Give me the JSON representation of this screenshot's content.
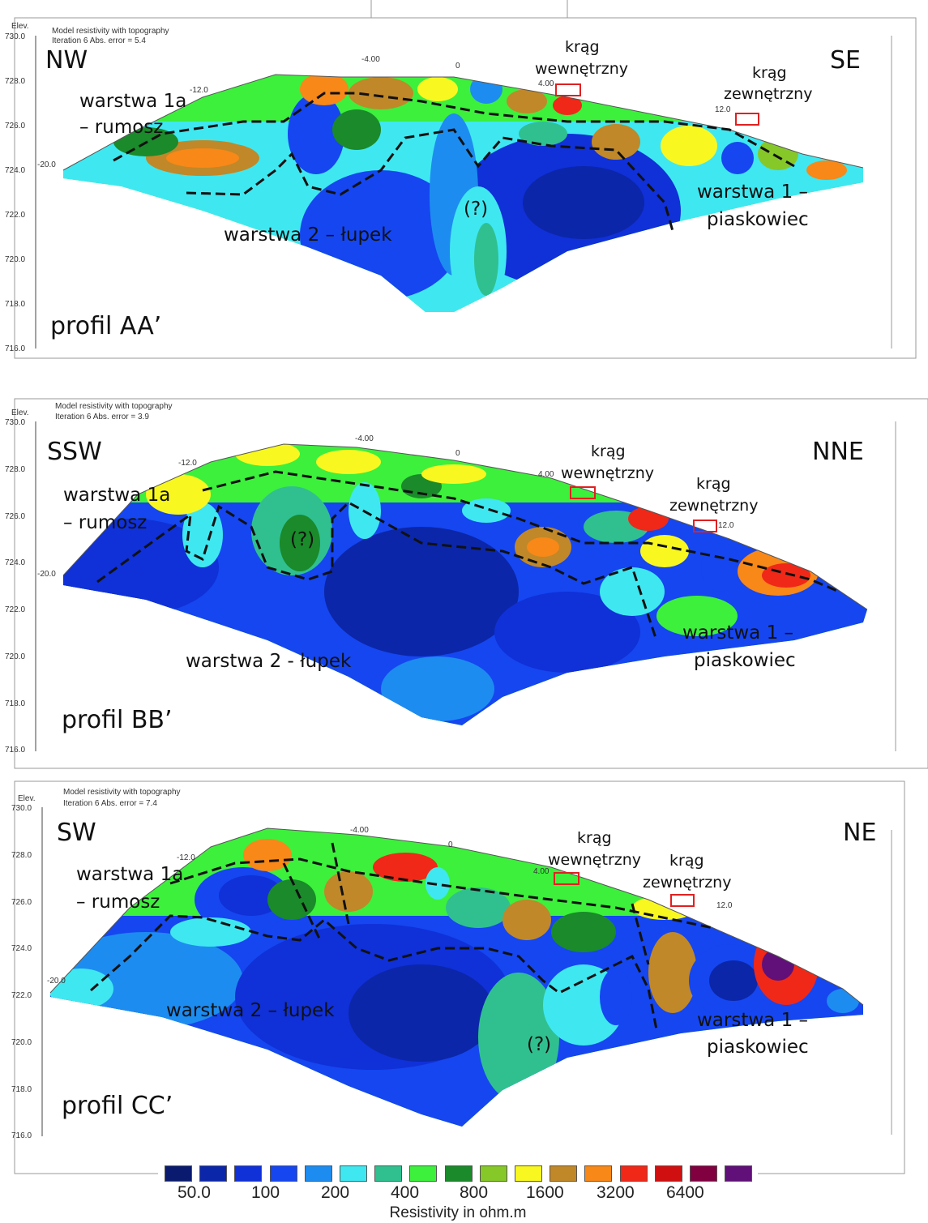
{
  "colors": {
    "scale": [
      "#0a1a6e",
      "#0b26a8",
      "#1030d8",
      "#1546f0",
      "#1d8cf0",
      "#3fe8f0",
      "#30c090",
      "#3cf03c",
      "#1a8a2a",
      "#86c828",
      "#f8f820",
      "#c08828",
      "#f88818",
      "#f02818",
      "#d01010",
      "#800040",
      "#601078"
    ],
    "frame": "#999999",
    "dashed": "#111111",
    "marker": "#e02020"
  },
  "profiles": [
    {
      "header_line1": "Model resistivity with topography",
      "header_line2": "Iteration 6 Abs. error = 5.4",
      "elev_label": "Elev.",
      "y_ticks": [
        "730.0",
        "728.0",
        "726.0",
        "724.0",
        "722.0",
        "720.0",
        "718.0",
        "716.0"
      ],
      "x_ticks": [
        "-20.0",
        "-12.0",
        "-4.00",
        "0",
        "4.00",
        "12.0"
      ],
      "dir_left": "NW",
      "dir_right": "SE",
      "inner_circle": [
        "krąg",
        "wewnętrzny"
      ],
      "outer_circle": [
        "krąg",
        "zewnętrzny"
      ],
      "layer_1a": [
        "warstwa 1a",
        "– rumosz"
      ],
      "layer_2": "warstwa 2 – łupek",
      "layer_1": [
        "warstwa 1 –",
        "piaskowiec"
      ],
      "question": "(?)",
      "profile_label": "profil AA’"
    },
    {
      "header_line1": "Model resistivity with topography",
      "header_line2": "Iteration 6 Abs. error = 3.9",
      "elev_label": "Elev.",
      "y_ticks": [
        "730.0",
        "728.0",
        "726.0",
        "724.0",
        "722.0",
        "720.0",
        "718.0",
        "716.0"
      ],
      "x_ticks": [
        "-20.0",
        "-12.0",
        "-4.00",
        "0",
        "4.00",
        "12.0"
      ],
      "dir_left": "SSW",
      "dir_right": "NNE",
      "inner_circle": [
        "krąg",
        "wewnętrzny"
      ],
      "outer_circle": [
        "krąg",
        "zewnętrzny"
      ],
      "layer_1a": [
        "warstwa 1a",
        "– rumosz"
      ],
      "layer_2": "warstwa 2 -  łupek",
      "layer_1": [
        "warstwa 1 –",
        "piaskowiec"
      ],
      "question": "(?)",
      "profile_label": "profil BB’"
    },
    {
      "header_line1": "Model resistivity with topography",
      "header_line2": "Iteration 6 Abs. error = 7.4",
      "elev_label": "Elev.",
      "y_ticks": [
        "730.0",
        "728.0",
        "726.0",
        "724.0",
        "722.0",
        "720.0",
        "718.0",
        "716.0"
      ],
      "x_ticks": [
        "-20.0",
        "-12.0",
        "-4.00",
        "0",
        "4.00",
        "12.0"
      ],
      "dir_left": "SW",
      "dir_right": "NE",
      "inner_circle": [
        "krąg",
        "wewnętrzny"
      ],
      "outer_circle": [
        "krąg",
        "zewnętrzny"
      ],
      "layer_1a": [
        "warstwa 1a",
        "– rumosz"
      ],
      "layer_2": "warstwa 2 – łupek",
      "layer_1": [
        "warstwa 1 –",
        "piaskowiec"
      ],
      "question": "(?)",
      "profile_label": "profil CC’"
    }
  ],
  "legend": {
    "labels": [
      "50.0",
      "100",
      "200",
      "400",
      "800",
      "1600",
      "3200",
      "6400"
    ],
    "title": "Resistivity in ohm.m"
  },
  "chart_data": {
    "type": "heatmap",
    "title": "",
    "xlabel": "",
    "ylabel": "Elev.",
    "ylim": [
      716.0,
      730.0
    ],
    "y_ticks": [
      730.0,
      728.0,
      726.0,
      724.0,
      722.0,
      720.0,
      718.0,
      716.0
    ],
    "x_ticks": [
      -20.0,
      -12.0,
      -4.0,
      0,
      4.0,
      12.0
    ],
    "colorbar": {
      "label": "Resistivity in ohm.m",
      "ticks": [
        50.0,
        100,
        200,
        400,
        800,
        1600,
        3200,
        6400
      ],
      "scale": "log"
    },
    "panels": [
      {
        "name": "profil AA’",
        "abs_error": 5.4,
        "iteration": 6
      },
      {
        "name": "profil BB’",
        "abs_error": 3.9,
        "iteration": 6
      },
      {
        "name": "profil CC’",
        "abs_error": 7.4,
        "iteration": 6
      }
    ]
  }
}
